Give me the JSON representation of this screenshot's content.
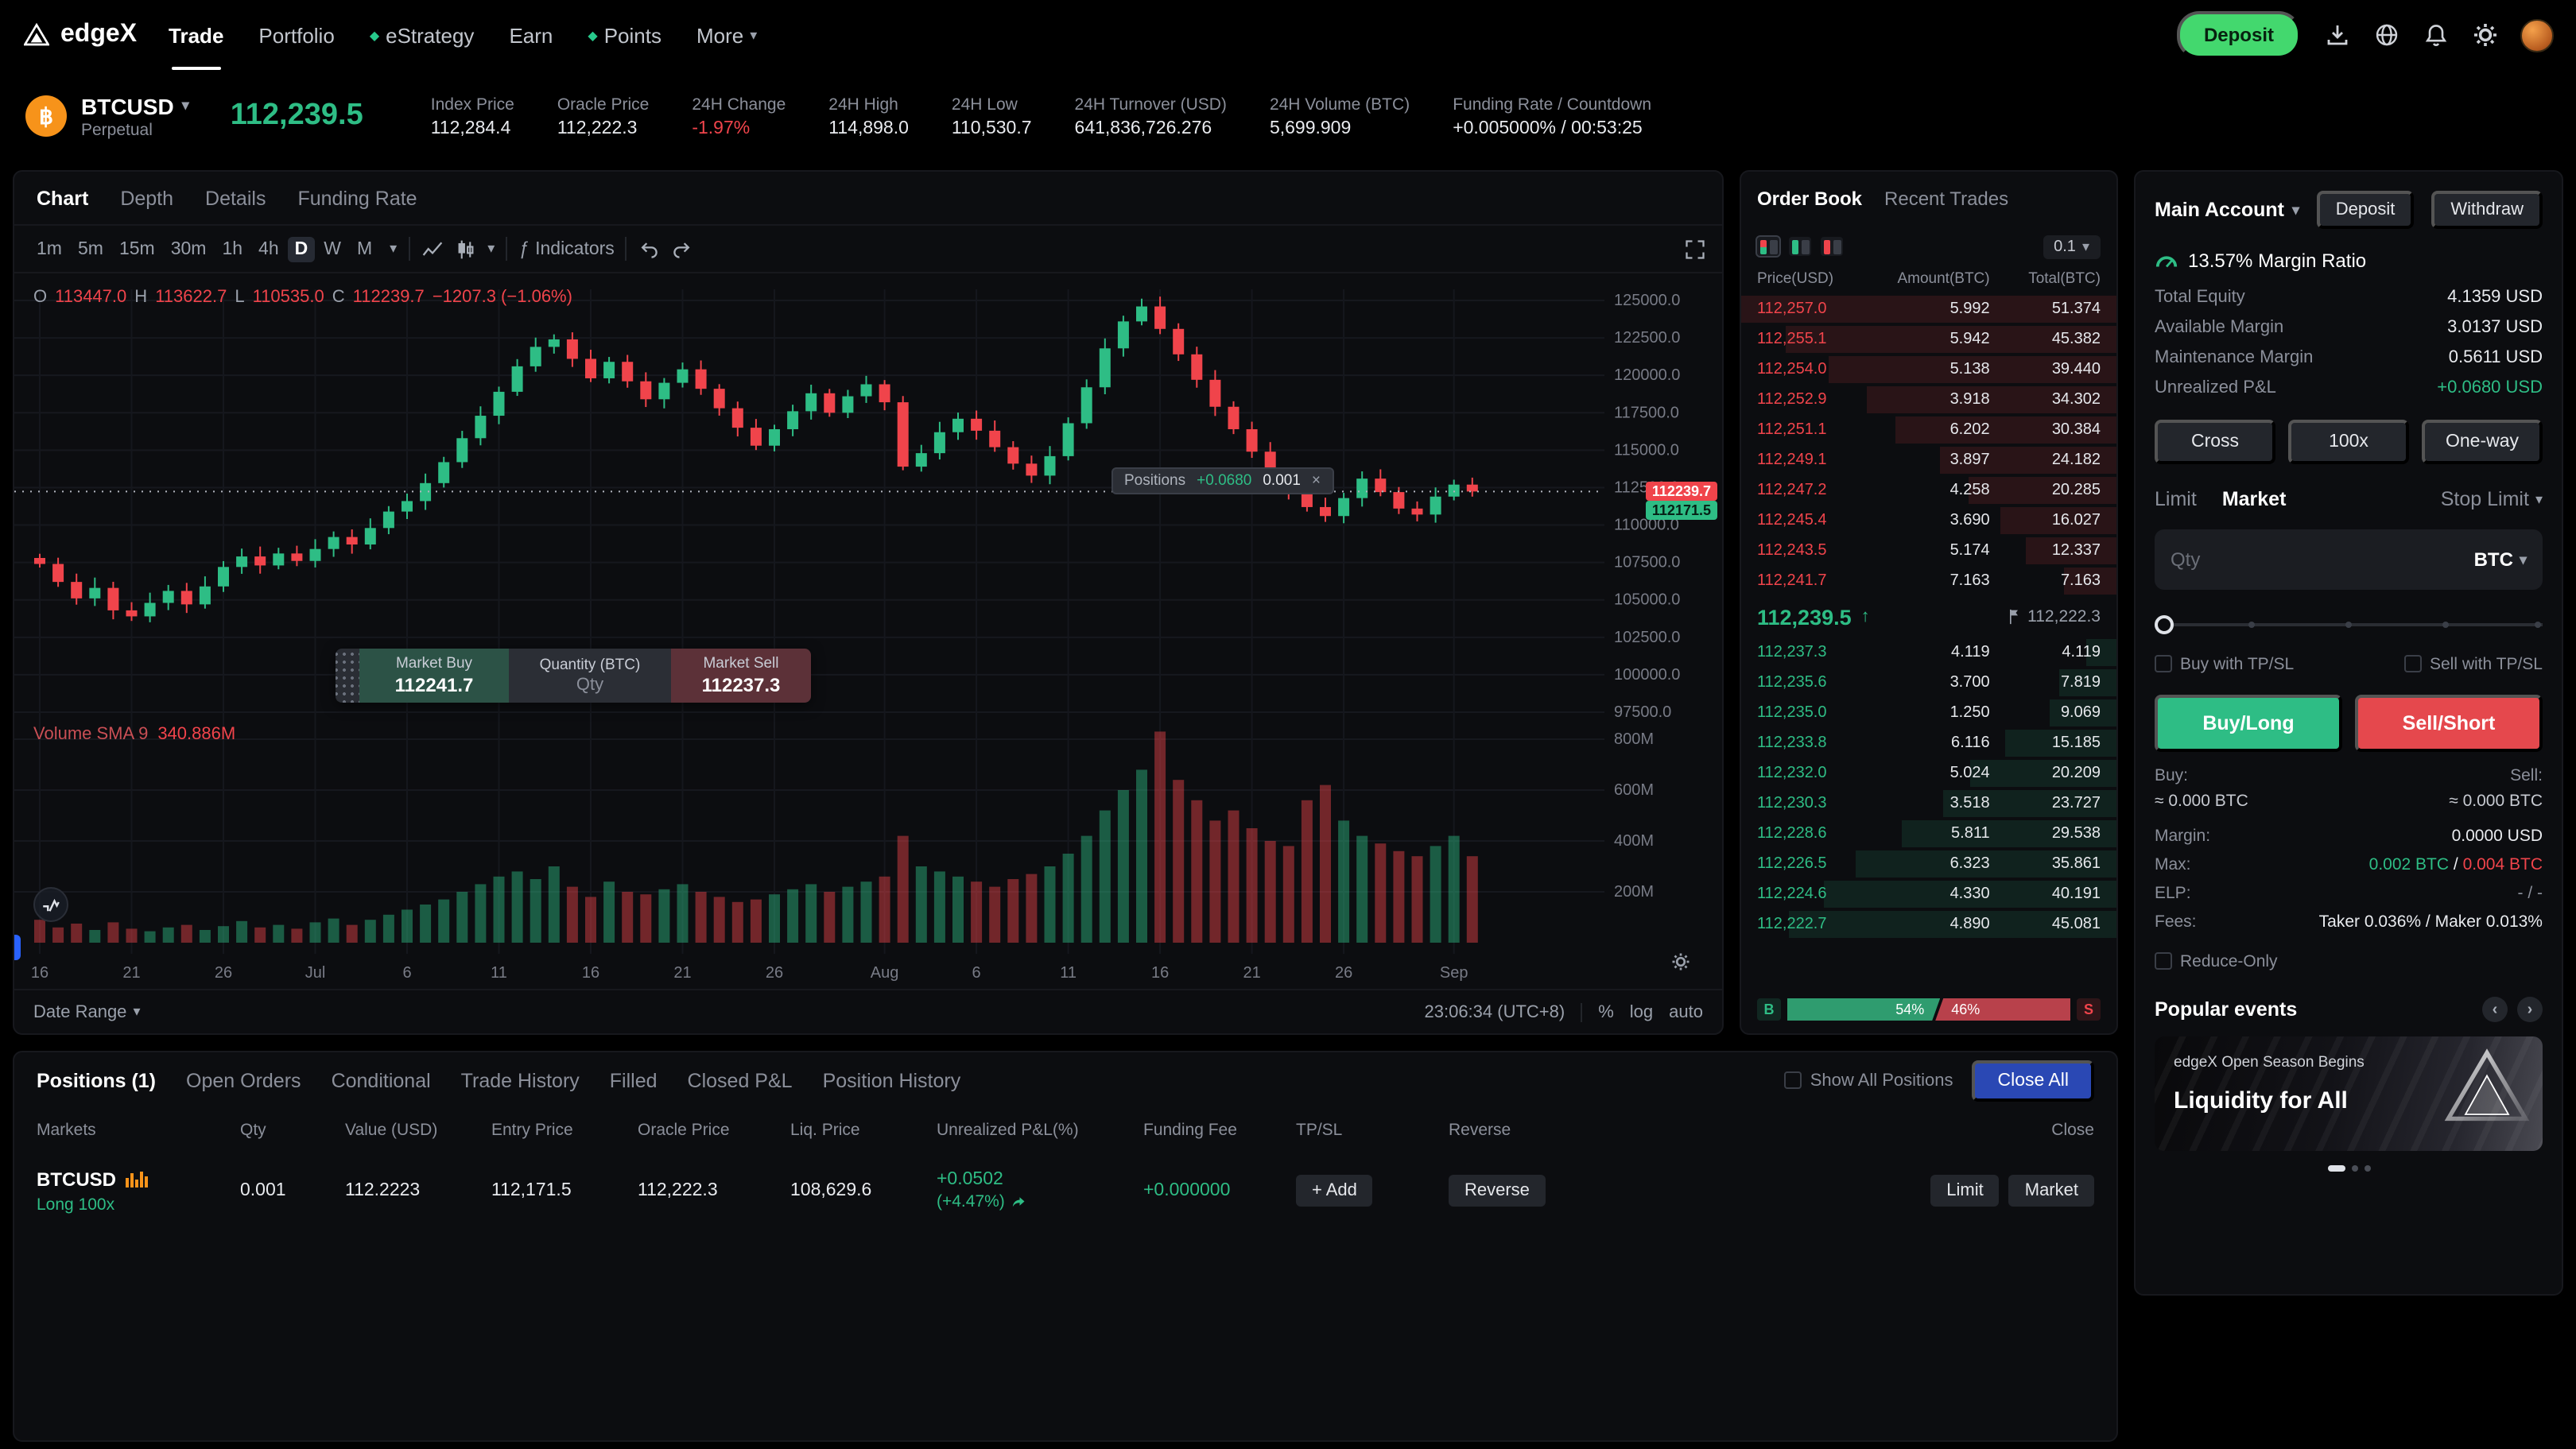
{
  "nav": {
    "brand": "edgeX",
    "items": [
      {
        "label": "Trade",
        "active": true
      },
      {
        "label": "Portfolio"
      },
      {
        "label": "eStrategy",
        "diamond": true
      },
      {
        "label": "Earn"
      },
      {
        "label": "Points",
        "diamond": true
      },
      {
        "label": "More",
        "caret": true
      }
    ],
    "deposit": "Deposit"
  },
  "ticker": {
    "symbol": "BTCUSD",
    "market_type": "Perpetual",
    "last_price": "112,239.5",
    "stats": [
      {
        "label": "Index Price",
        "value": "112,284.4"
      },
      {
        "label": "Oracle Price",
        "value": "112,222.3"
      },
      {
        "label": "24H Change",
        "value": "-1.97%",
        "neg": true
      },
      {
        "label": "24H High",
        "value": "114,898.0"
      },
      {
        "label": "24H Low",
        "value": "110,530.7"
      },
      {
        "label": "24H Turnover (USD)",
        "value": "641,836,726.276"
      },
      {
        "label": "24H Volume (BTC)",
        "value": "5,699.909"
      },
      {
        "label": "Funding Rate / Countdown",
        "value": "+0.005000% / 00:53:25"
      }
    ]
  },
  "chart_panel": {
    "tabs": [
      "Chart",
      "Depth",
      "Details",
      "Funding Rate"
    ],
    "active_tab": "Chart",
    "timeframes": [
      "1m",
      "5m",
      "15m",
      "30m",
      "1h",
      "4h",
      "D",
      "W",
      "M"
    ],
    "active_timeframe": "D",
    "indicators_label": "Indicators",
    "ohlc": {
      "o_label": "O",
      "o": "113447.0",
      "h_label": "H",
      "h": "113622.7",
      "l_label": "L",
      "l": "110535.0",
      "c_label": "C",
      "c": "112239.7",
      "change": "−1207.3 (−1.06%)"
    },
    "volume_legend": {
      "label": "Volume SMA 9",
      "value": "340.886M"
    },
    "positions_pill": {
      "label": "Positions",
      "pnl": "+0.0680",
      "qty": "0.001",
      "close": "×"
    },
    "trade_widget": {
      "buy_label": "Market Buy",
      "buy_price": "112241.7",
      "qty_label": "Quantity (BTC)",
      "qty_placeholder": "Qty",
      "sell_label": "Market Sell",
      "sell_price": "112237.3"
    },
    "price_tags": {
      "last": "112239.7",
      "entry": "112171.5"
    },
    "footer": {
      "date_range": "Date Range",
      "clock": "23:06:34 (UTC+8)",
      "pct": "%",
      "log": "log",
      "auto": "auto"
    }
  },
  "chart_data": {
    "type": "candlestick+volume",
    "symbol": "BTCUSD",
    "interval": "D",
    "ylim": [
      97500,
      125000
    ],
    "price_axis": [
      125000,
      122500,
      120000,
      117500,
      115000,
      112500,
      110000,
      107500,
      105000,
      102500,
      100000,
      97500
    ],
    "volume_axis_m": [
      800,
      600,
      400,
      200
    ],
    "x_ticks": [
      {
        "label": "16",
        "i": 0
      },
      {
        "label": "21",
        "i": 5
      },
      {
        "label": "26",
        "i": 10
      },
      {
        "label": "Jul",
        "i": 15
      },
      {
        "label": "6",
        "i": 20
      },
      {
        "label": "11",
        "i": 25
      },
      {
        "label": "16",
        "i": 30
      },
      {
        "label": "21",
        "i": 35
      },
      {
        "label": "26",
        "i": 40
      },
      {
        "label": "Aug",
        "i": 46
      },
      {
        "label": "6",
        "i": 51
      },
      {
        "label": "11",
        "i": 56
      },
      {
        "label": "16",
        "i": 61
      },
      {
        "label": "21",
        "i": 66
      },
      {
        "label": "26",
        "i": 71
      },
      {
        "label": "Sep",
        "i": 77
      }
    ],
    "last_price": 112239.7,
    "entry_price": 112171.5,
    "first_open": 107800,
    "closes": [
      107400,
      106200,
      105100,
      105800,
      104300,
      103900,
      104800,
      105600,
      104700,
      105900,
      107200,
      107900,
      107300,
      108100,
      107600,
      108400,
      109200,
      108700,
      109800,
      110900,
      111600,
      112800,
      114200,
      115800,
      117300,
      118900,
      120600,
      121900,
      122400,
      121100,
      119800,
      120900,
      119600,
      118400,
      119500,
      120400,
      119100,
      117800,
      116500,
      115300,
      116400,
      117600,
      118800,
      117500,
      118600,
      119400,
      118200,
      113900,
      114800,
      116200,
      117100,
      116300,
      115200,
      114100,
      113300,
      114600,
      116800,
      119200,
      121800,
      123600,
      124600,
      123100,
      121400,
      119700,
      117900,
      116400,
      114900,
      113400,
      112300,
      111200,
      110600,
      111800,
      113100,
      112200,
      111100,
      110700,
      111900,
      112700,
      112239.7
    ],
    "volumes_m": [
      90,
      60,
      75,
      50,
      80,
      55,
      45,
      60,
      70,
      50,
      65,
      85,
      60,
      70,
      55,
      80,
      95,
      70,
      90,
      110,
      130,
      150,
      170,
      200,
      230,
      260,
      280,
      250,
      300,
      220,
      180,
      240,
      200,
      190,
      210,
      230,
      200,
      180,
      160,
      170,
      190,
      210,
      230,
      200,
      220,
      240,
      260,
      420,
      300,
      280,
      260,
      240,
      220,
      250,
      270,
      300,
      350,
      420,
      520,
      600,
      680,
      830,
      640,
      560,
      480,
      520,
      450,
      400,
      380,
      560,
      620,
      480,
      420,
      390,
      360,
      340,
      380,
      420,
      340
    ]
  },
  "order_book": {
    "tabs": [
      "Order Book",
      "Recent Trades"
    ],
    "active_tab": "Order Book",
    "precision": "0.1",
    "columns": [
      "Price(USD)",
      "Amount(BTC)",
      "Total(BTC)"
    ],
    "asks": [
      [
        "112,257.0",
        "5.992",
        "51.374"
      ],
      [
        "112,255.1",
        "5.942",
        "45.382"
      ],
      [
        "112,254.0",
        "5.138",
        "39.440"
      ],
      [
        "112,252.9",
        "3.918",
        "34.302"
      ],
      [
        "112,251.1",
        "6.202",
        "30.384"
      ],
      [
        "112,249.1",
        "3.897",
        "24.182"
      ],
      [
        "112,247.2",
        "4.258",
        "20.285"
      ],
      [
        "112,245.4",
        "3.690",
        "16.027"
      ],
      [
        "112,243.5",
        "5.174",
        "12.337"
      ],
      [
        "112,241.7",
        "7.163",
        "7.163"
      ]
    ],
    "bids": [
      [
        "112,237.3",
        "4.119",
        "4.119"
      ],
      [
        "112,235.6",
        "3.700",
        "7.819"
      ],
      [
        "112,235.0",
        "1.250",
        "9.069"
      ],
      [
        "112,233.8",
        "6.116",
        "15.185"
      ],
      [
        "112,232.0",
        "5.024",
        "20.209"
      ],
      [
        "112,230.3",
        "3.518",
        "23.727"
      ],
      [
        "112,228.6",
        "5.811",
        "29.538"
      ],
      [
        "112,226.5",
        "6.323",
        "35.861"
      ],
      [
        "112,224.6",
        "4.330",
        "40.191"
      ],
      [
        "112,222.7",
        "4.890",
        "45.081"
      ]
    ],
    "mid": {
      "price": "112,239.5",
      "arrow": "↑",
      "mark": "112,222.3"
    },
    "ratio": {
      "buy_label": "B",
      "buy_pct": "54%",
      "sell_pct": "46%",
      "sell_label": "S"
    }
  },
  "account_panel": {
    "account_label": "Main Account",
    "deposit": "Deposit",
    "withdraw": "Withdraw",
    "margin_ratio": "13.57% Margin Ratio",
    "rows": [
      {
        "label": "Total Equity",
        "value": "4.1359 USD"
      },
      {
        "label": "Available Margin",
        "value": "3.0137 USD"
      },
      {
        "label": "Maintenance Margin",
        "value": "0.5611 USD"
      },
      {
        "label": "Unrealized P&L",
        "value": "+0.0680 USD",
        "green": true
      }
    ],
    "mode_buttons": [
      "Cross",
      "100x",
      "One-way"
    ],
    "order_tabs": [
      "Limit",
      "Market"
    ],
    "active_order_tab": "Market",
    "stop_limit": "Stop Limit",
    "qty_placeholder": "Qty",
    "qty_unit": "BTC",
    "tpsl_buy": "Buy with TP/SL",
    "tpsl_sell": "Sell with TP/SL",
    "buy_button": "Buy/Long",
    "sell_button": "Sell/Short",
    "buy_label": "Buy:",
    "sell_label": "Sell:",
    "buy_est": "≈ 0.000 BTC",
    "sell_est": "≈ 0.000 BTC",
    "margin_label": "Margin:",
    "margin_value": "0.0000 USD",
    "max_label": "Max:",
    "max_buy": "0.002 BTC",
    "max_sep": " / ",
    "max_sell": "0.004 BTC",
    "elp_label": "ELP:",
    "elp_value": "- / -",
    "fees_label": "Fees:",
    "fees_value": "Taker 0.036% / Maker 0.013%",
    "reduce_only": "Reduce-Only"
  },
  "positions_panel": {
    "tabs": [
      "Positions (1)",
      "Open Orders",
      "Conditional",
      "Trade History",
      "Filled",
      "Closed P&L",
      "Position History"
    ],
    "active_tab": "Positions (1)",
    "show_all": "Show All Positions",
    "close_all": "Close All",
    "columns": [
      "Markets",
      "Qty",
      "Value (USD)",
      "Entry Price",
      "Oracle Price",
      "Liq. Price",
      "Unrealized P&L(%)",
      "Funding Fee",
      "TP/SL",
      "Reverse",
      "Close"
    ],
    "row": {
      "market": "BTCUSD",
      "side": "Long 100x",
      "qty": "0.001",
      "value": "112.2223",
      "entry": "112,171.5",
      "oracle": "112,222.3",
      "liq": "108,629.6",
      "upnl": "+0.0502",
      "upnl_pct": "(+4.47%)",
      "funding": "+0.000000",
      "add": "+ Add",
      "reverse": "Reverse",
      "limit": "Limit",
      "market_btn": "Market"
    }
  },
  "events": {
    "title": "Popular events",
    "banner_line1": "edgeX Open Season Begins",
    "banner_line2": "Liquidity for All"
  }
}
